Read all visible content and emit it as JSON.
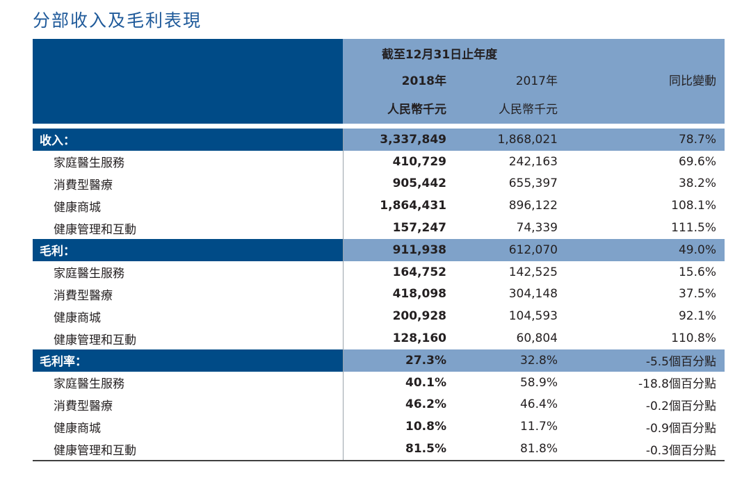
{
  "page": {
    "title": "分部收入及毛利表現"
  },
  "header": {
    "caption": "截至12月31日止年度",
    "year_2018": "2018年",
    "year_2017": "2017年",
    "yoy": "同比變動",
    "unit_2018": "人民幣千元",
    "unit_2017": "人民幣千元"
  },
  "sections": [
    {
      "label": "收入：",
      "total": {
        "v2018": "3,337,849",
        "v2017": "1,868,021",
        "yoy": "78.7%"
      },
      "rows": [
        {
          "label": "家庭醫生服務",
          "v2018": "410,729",
          "v2017": "242,163",
          "yoy": "69.6%"
        },
        {
          "label": "消費型醫療",
          "v2018": "905,442",
          "v2017": "655,397",
          "yoy": "38.2%"
        },
        {
          "label": "健康商城",
          "v2018": "1,864,431",
          "v2017": "896,122",
          "yoy": "108.1%"
        },
        {
          "label": "健康管理和互動",
          "v2018": "157,247",
          "v2017": "74,339",
          "yoy": "111.5%"
        }
      ]
    },
    {
      "label": "毛利：",
      "total": {
        "v2018": "911,938",
        "v2017": "612,070",
        "yoy": "49.0%"
      },
      "rows": [
        {
          "label": "家庭醫生服務",
          "v2018": "164,752",
          "v2017": "142,525",
          "yoy": "15.6%"
        },
        {
          "label": "消費型醫療",
          "v2018": "418,098",
          "v2017": "304,148",
          "yoy": "37.5%"
        },
        {
          "label": "健康商城",
          "v2018": "200,928",
          "v2017": "104,593",
          "yoy": "92.1%"
        },
        {
          "label": "健康管理和互動",
          "v2018": "128,160",
          "v2017": "60,804",
          "yoy": "110.8%"
        }
      ]
    },
    {
      "label": "毛利率：",
      "total": {
        "v2018": "27.3%",
        "v2017": "32.8%",
        "yoy": "-5.5個百分點"
      },
      "rows": [
        {
          "label": "家庭醫生服務",
          "v2018": "40.1%",
          "v2017": "58.9%",
          "yoy": "-18.8個百分點"
        },
        {
          "label": "消費型醫療",
          "v2018": "46.2%",
          "v2017": "46.4%",
          "yoy": "-0.2個百分點"
        },
        {
          "label": "健康商城",
          "v2018": "10.8%",
          "v2017": "11.7%",
          "yoy": "-0.9個百分點"
        },
        {
          "label": "健康管理和互動",
          "v2018": "81.5%",
          "v2017": "81.8%",
          "yoy": "-0.3個百分點"
        }
      ]
    }
  ]
}
